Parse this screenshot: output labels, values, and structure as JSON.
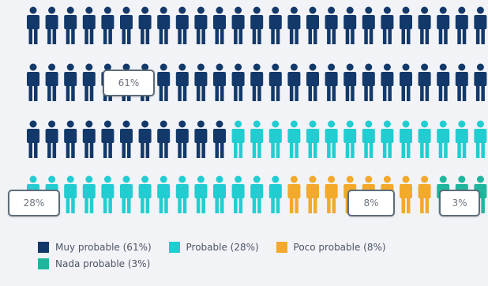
{
  "colors": {
    "muy": "#12396a",
    "probable": "#22cdd1",
    "poco": "#f2a92c",
    "nada": "#1fb69d"
  },
  "chart_data": {
    "type": "pictogram",
    "unit_icon": "person-icon",
    "icons_per_row": 25,
    "rows": 4,
    "total_icons": 100,
    "series": [
      {
        "name": "Muy probable (61%)",
        "value": 61,
        "color_key": "muy",
        "callout": "61%"
      },
      {
        "name": "Probable (28%)",
        "value": 28,
        "color_key": "probable",
        "callout": "28%"
      },
      {
        "name": "Poco probable (8%)",
        "value": 8,
        "color_key": "poco",
        "callout": "8%"
      },
      {
        "name": "Nada probable (3%)",
        "value": 3,
        "color_key": "nada",
        "callout": "3%"
      }
    ]
  }
}
